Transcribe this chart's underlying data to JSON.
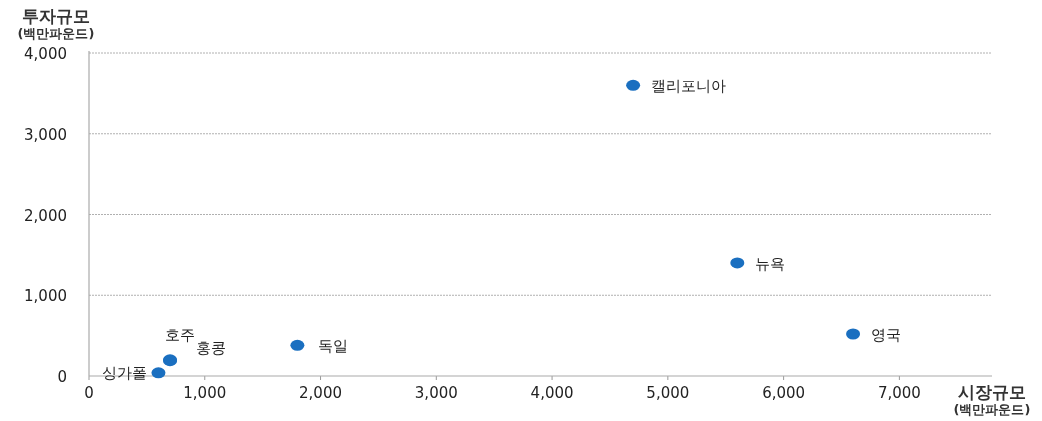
{
  "chart_data": {
    "type": "scatter",
    "xlabel": "시장규모 (백만파운드)",
    "ylabel": "투자규모 (백만파운드)",
    "xlim": [
      0,
      7800
    ],
    "ylim": [
      0,
      4000
    ],
    "xticks": [
      {
        "value": 0,
        "label": "0"
      },
      {
        "value": 1000,
        "label": "1,000"
      },
      {
        "value": 2000,
        "label": "2,000"
      },
      {
        "value": 3000,
        "label": "3,000"
      },
      {
        "value": 4000,
        "label": "4,000"
      },
      {
        "value": 5000,
        "label": "5,000"
      },
      {
        "value": 6000,
        "label": "6,000"
      },
      {
        "value": 7000,
        "label": "7,000"
      }
    ],
    "yticks": [
      {
        "value": 0,
        "label": "0"
      },
      {
        "value": 1000,
        "label": "1,000"
      },
      {
        "value": 2000,
        "label": "2,000"
      },
      {
        "value": 3000,
        "label": "3,000"
      },
      {
        "value": 4000,
        "label": "4,000"
      }
    ],
    "grid": "y",
    "marker": "circle",
    "series": [
      {
        "name": "캘리포니아",
        "color": "#1a6fc0",
        "x": [
          4700
        ],
        "values": [
          3600
        ]
      },
      {
        "name": "뉴욕",
        "color": "#1a6fc0",
        "x": [
          5600
        ],
        "values": [
          1400
        ]
      },
      {
        "name": "영국",
        "color": "#1a6fc0",
        "x": [
          6600
        ],
        "values": [
          520
        ]
      },
      {
        "name": "독일",
        "color": "#1a6fc0",
        "x": [
          1800
        ],
        "values": [
          380
        ]
      },
      {
        "name": "호주",
        "color": "#1a6fc0",
        "x": [
          700
        ],
        "values": [
          200
        ]
      },
      {
        "name": "홍콩",
        "color": "#1a6fc0",
        "x": [
          700
        ],
        "values": [
          190
        ]
      },
      {
        "name": "싱가폴",
        "color": "#1a6fc0",
        "x": [
          600
        ],
        "values": [
          40
        ]
      }
    ]
  }
}
